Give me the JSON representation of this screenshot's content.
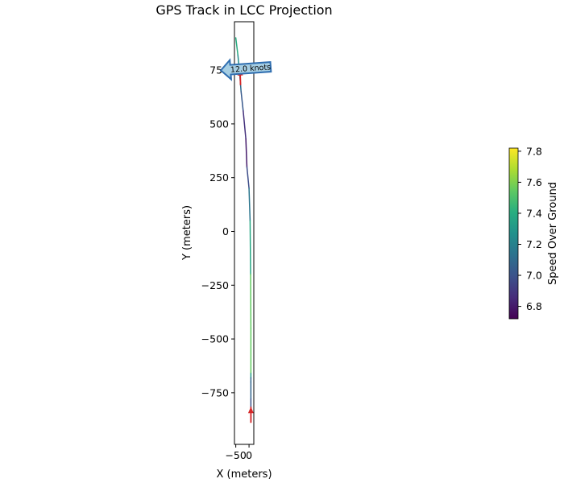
{
  "chart_data": {
    "type": "line",
    "title": "GPS Track in LCC Projection",
    "xlabel": "X (meters)",
    "ylabel": "Y (meters)",
    "xlim": [
      -55,
      18
    ],
    "ylim": [
      -990,
      975
    ],
    "x_ticks": [
      -50,
      0
    ],
    "x_tick_labels": [
      "−50",
      "0"
    ],
    "y_ticks": [
      -750,
      -500,
      -250,
      0,
      250,
      500,
      750
    ],
    "y_tick_labels": [
      "−750",
      "−500",
      "−250",
      "0",
      "250",
      "500",
      "750"
    ],
    "grid": false,
    "track": {
      "x": [
        -50,
        -42,
        -35,
        -30,
        -22,
        -12,
        -8,
        0,
        4,
        6,
        7,
        7,
        7,
        7,
        7,
        7,
        7,
        7
      ],
      "y": [
        900,
        820,
        730,
        650,
        560,
        430,
        300,
        200,
        50,
        -200,
        -450,
        -660,
        -680,
        -700,
        -780,
        -840,
        -870,
        -885
      ],
      "speed": [
        7.45,
        7.35,
        7.15,
        7.05,
        7.0,
        6.75,
        6.85,
        7.1,
        7.2,
        7.55,
        7.55,
        7.55,
        7.1,
        7.1,
        7.05,
        6.95,
        6.9,
        6.85
      ]
    },
    "direction_arrows": [
      {
        "x": -32,
        "y": 680,
        "dx": -2,
        "dy": 75,
        "color": "#d62728"
      },
      {
        "x": 7,
        "y": -890,
        "dx": 0,
        "dy": 75,
        "color": "#d62728"
      }
    ],
    "annotation": {
      "text": "12.0 knots",
      "target_x": -55,
      "target_y": 760,
      "face_color": "#a6cee3",
      "edge_color": "#2f6eb0"
    },
    "colorbar": {
      "label": "Speed Over Ground",
      "min": 6.72,
      "max": 7.82,
      "ticks": [
        6.8,
        7.0,
        7.2,
        7.4,
        7.6,
        7.8
      ],
      "tick_labels": [
        "6.8",
        "7.0",
        "7.2",
        "7.4",
        "7.6",
        "7.8"
      ],
      "colormap": "viridis"
    }
  }
}
